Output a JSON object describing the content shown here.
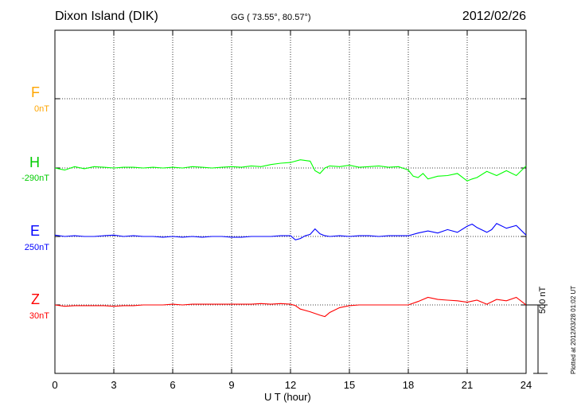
{
  "header": {
    "station": "Dixon Island (DIK)",
    "coords": "GG ( 73.55°,  80.57°)",
    "date": "2012/02/26"
  },
  "footer": {
    "plotted": "Plotted at 2012/03/28 01:02 UT"
  },
  "chart_data": {
    "type": "line",
    "title": "Dixon Island (DIK)",
    "xlabel": "U T (hour)",
    "xlim": [
      0,
      24
    ],
    "xticks": [
      0,
      3,
      6,
      9,
      12,
      15,
      18,
      21,
      24
    ],
    "ylabel": "",
    "scale_bar": {
      "label": "500 nT",
      "value_nT": 500
    },
    "grid": true,
    "series": [
      {
        "name": "F",
        "offset_label": "0nT",
        "color": "#ffa500",
        "baseline_nT": 0,
        "x": [],
        "values": []
      },
      {
        "name": "H",
        "offset_label": "-290nT",
        "color": "#00ff00",
        "baseline_nT": 0,
        "x": [
          0,
          0.5,
          1,
          1.5,
          2,
          2.5,
          3,
          3.5,
          4,
          4.5,
          5,
          5.5,
          6,
          6.5,
          7,
          7.5,
          8,
          8.5,
          9,
          9.5,
          10,
          10.5,
          11,
          11.5,
          12,
          12.5,
          13,
          13.25,
          13.5,
          13.75,
          14,
          14.5,
          15,
          15.5,
          16,
          16.5,
          17,
          17.5,
          18,
          18.25,
          18.5,
          18.75,
          19,
          19.5,
          20,
          20.5,
          21,
          21.25,
          21.5,
          22,
          22.5,
          23,
          23.5,
          24
        ],
        "values": [
          0,
          -15,
          10,
          -5,
          10,
          5,
          0,
          5,
          5,
          0,
          5,
          0,
          5,
          0,
          10,
          5,
          0,
          5,
          10,
          5,
          15,
          10,
          25,
          35,
          40,
          60,
          50,
          -20,
          -40,
          0,
          15,
          10,
          20,
          5,
          10,
          15,
          5,
          10,
          -15,
          -60,
          -70,
          -40,
          -80,
          -60,
          -55,
          -40,
          -95,
          -80,
          -70,
          -25,
          -55,
          -20,
          -55,
          15
        ]
      },
      {
        "name": "E",
        "offset_label": "250nT",
        "color": "#0000ff",
        "baseline_nT": 0,
        "x": [
          0,
          0.5,
          1,
          1.5,
          2,
          2.5,
          3,
          3.5,
          4,
          4.5,
          5,
          5.5,
          6,
          6.5,
          7,
          7.5,
          8,
          8.5,
          9,
          9.5,
          10,
          10.5,
          11,
          11.5,
          12,
          12.25,
          12.5,
          12.75,
          13,
          13.25,
          13.5,
          13.75,
          14,
          14.5,
          15,
          15.5,
          16,
          16.5,
          17,
          17.5,
          18,
          18.5,
          19,
          19.5,
          20,
          20.5,
          21,
          21.25,
          21.5,
          22,
          22.25,
          22.5,
          23,
          23.5,
          24
        ],
        "values": [
          10,
          0,
          5,
          0,
          0,
          5,
          10,
          0,
          5,
          0,
          0,
          -5,
          0,
          -5,
          0,
          -5,
          0,
          0,
          -5,
          -5,
          0,
          0,
          0,
          5,
          5,
          -25,
          -15,
          5,
          15,
          55,
          20,
          5,
          0,
          5,
          0,
          5,
          5,
          0,
          5,
          5,
          5,
          25,
          40,
          25,
          50,
          30,
          75,
          90,
          65,
          30,
          50,
          95,
          60,
          80,
          10
        ]
      },
      {
        "name": "Z",
        "offset_label": "30nT",
        "color": "#ff0000",
        "baseline_nT": 0,
        "x": [
          0,
          0.5,
          1,
          1.5,
          2,
          2.5,
          3,
          3.5,
          4,
          4.5,
          5,
          5.5,
          6,
          6.5,
          7,
          7.5,
          8,
          8.5,
          9,
          9.5,
          10,
          10.5,
          11,
          11.5,
          12,
          12.25,
          12.5,
          13,
          13.5,
          13.75,
          14,
          14.5,
          15,
          15.5,
          16,
          16.5,
          17,
          17.5,
          18,
          18.5,
          19,
          19.5,
          20,
          20.5,
          21,
          21.5,
          22,
          22.5,
          23,
          23.5,
          24
        ],
        "values": [
          0,
          -10,
          -5,
          -5,
          -5,
          -5,
          -10,
          -5,
          -5,
          0,
          0,
          0,
          5,
          0,
          5,
          5,
          5,
          5,
          5,
          5,
          5,
          10,
          5,
          10,
          5,
          -5,
          -30,
          -50,
          -75,
          -85,
          -55,
          -20,
          -5,
          0,
          0,
          0,
          0,
          0,
          0,
          25,
          55,
          40,
          35,
          30,
          20,
          35,
          5,
          40,
          30,
          55,
          0
        ]
      }
    ]
  }
}
